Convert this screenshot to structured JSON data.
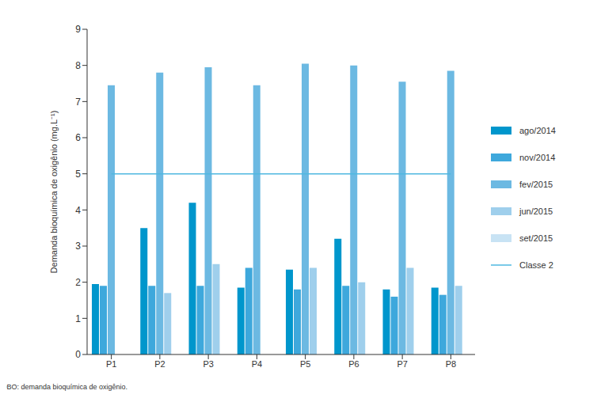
{
  "chart_data": {
    "type": "bar",
    "categories": [
      "P1",
      "P2",
      "P3",
      "P4",
      "P5",
      "P6",
      "P7",
      "P8"
    ],
    "y_label": "Demanda bioquímica de oxigênio (mg.L⁻¹)",
    "footnote": "DBO: demanda bioquímica de oxigênio.",
    "ylim": [
      0,
      9
    ],
    "yticks": [
      0,
      1,
      2,
      3,
      4,
      5,
      6,
      7,
      8,
      9
    ],
    "grid": false,
    "legend": "right",
    "series": [
      {
        "name": "ago/2014",
        "color": "#0096cc",
        "values": [
          1.95,
          3.5,
          4.2,
          1.85,
          2.35,
          3.2,
          1.8,
          1.85
        ]
      },
      {
        "name": "nov/2014",
        "color": "#3ea8dc",
        "values": [
          1.9,
          1.9,
          1.9,
          2.4,
          1.8,
          1.9,
          1.6,
          1.65
        ]
      },
      {
        "name": "fev/2015",
        "color": "#6cb9e2",
        "values": [
          7.45,
          7.8,
          7.95,
          7.45,
          8.05,
          8.0,
          7.55,
          7.85
        ]
      },
      {
        "name": "jun/2015",
        "color": "#9fcfec",
        "values": [
          null,
          1.7,
          2.5,
          null,
          2.4,
          2.0,
          2.4,
          1.9
        ]
      },
      {
        "name": "set/2015",
        "color": "#c8e3f4",
        "values": [
          null,
          null,
          null,
          null,
          null,
          null,
          null,
          null
        ]
      },
      {
        "name": "Classe 2",
        "type": "line",
        "color": "#4fb8e0",
        "values": [
          5,
          5,
          5,
          5,
          5,
          5,
          5,
          5
        ]
      }
    ]
  }
}
